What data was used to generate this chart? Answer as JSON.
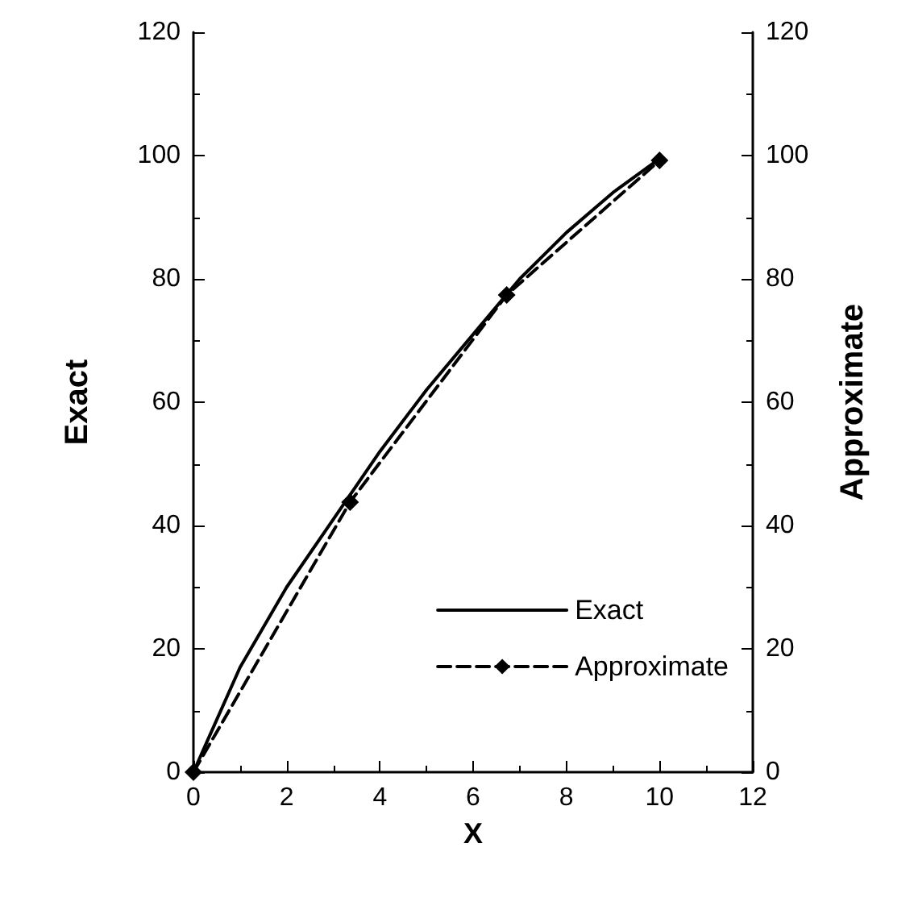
{
  "chart_data": {
    "type": "line",
    "xlabel": "X",
    "ylabel": "Exact",
    "y2label": "Approximate",
    "xlim": [
      0,
      12
    ],
    "xticks": [
      0,
      2,
      4,
      6,
      8,
      10,
      12
    ],
    "ylim": [
      0,
      120
    ],
    "yticks": [
      0,
      20,
      40,
      60,
      80,
      100,
      120
    ],
    "y2lim": [
      0,
      120
    ],
    "y2ticks": [
      0,
      20,
      40,
      60,
      80,
      100,
      120
    ],
    "grid": false,
    "legend": "bottom right",
    "series": [
      {
        "name": "Exact",
        "color": "#000000",
        "line_style": "solid",
        "marker": "none",
        "x": [
          0,
          1,
          2,
          3,
          4,
          5,
          6,
          7,
          8,
          9,
          10
        ],
        "values": [
          0,
          17,
          30,
          41,
          52,
          62,
          71,
          80,
          87.5,
          94,
          99.5
        ]
      },
      {
        "name": "Approximate",
        "color": "#000000",
        "line_style": "dashed",
        "marker": "diamond",
        "axis": "y2",
        "x": [
          0,
          3.36,
          6.72,
          10
        ],
        "values": [
          0,
          43.8,
          77.4,
          99.2
        ]
      }
    ]
  }
}
